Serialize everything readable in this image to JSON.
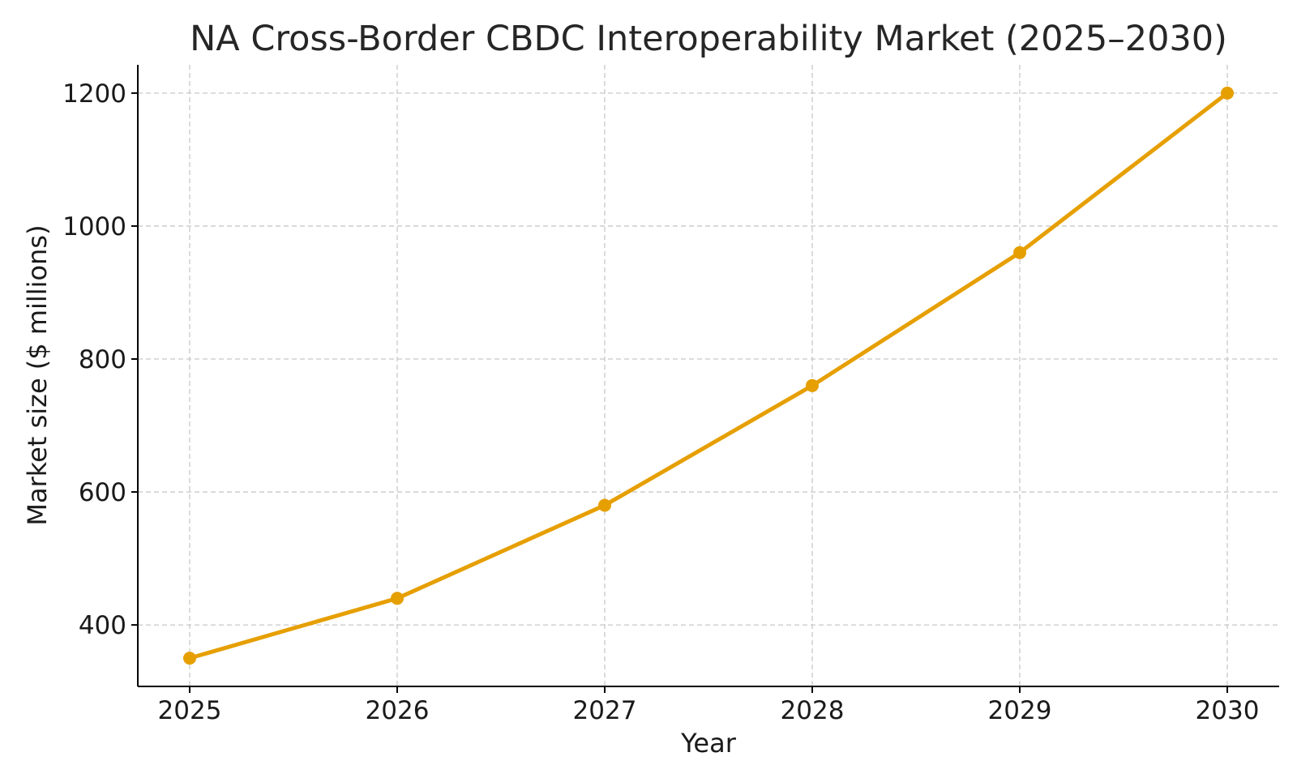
{
  "chart_data": {
    "type": "line",
    "title": "NA Cross-Border CBDC Interoperability Market (2025–2030)",
    "xlabel": "Year",
    "ylabel": "Market size ($ millions)",
    "x": [
      2025,
      2026,
      2027,
      2028,
      2029,
      2030
    ],
    "x_tick_labels": [
      "2025",
      "2026",
      "2027",
      "2028",
      "2029",
      "2030"
    ],
    "series": [
      {
        "values": [
          350,
          440,
          580,
          760,
          960,
          1200
        ],
        "color": "#E69F00",
        "marker": "circle"
      }
    ],
    "y_ticks": [
      400,
      600,
      800,
      1000,
      1200
    ],
    "y_tick_labels": [
      "400",
      "600",
      "800",
      "1000",
      "1200"
    ],
    "ylim": [
      307.5,
      1242.5
    ],
    "xlim": [
      2024.75,
      2030.25
    ],
    "grid": true,
    "legend": "none"
  }
}
